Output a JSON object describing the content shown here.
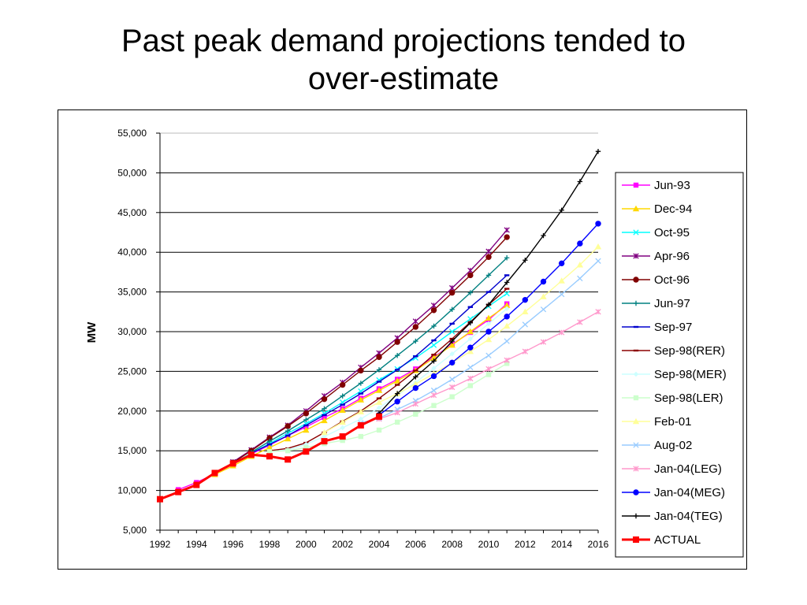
{
  "slide": {
    "title_line1": "Past peak demand projections tended to",
    "title_line2": "over-estimate"
  },
  "chart_data": {
    "type": "line",
    "title": "",
    "xlabel": "",
    "ylabel": "MW",
    "xlim": [
      1992,
      2016
    ],
    "ylim": [
      5000,
      55000
    ],
    "x_ticks": [
      1992,
      1994,
      1996,
      1998,
      2000,
      2002,
      2004,
      2006,
      2008,
      2010,
      2012,
      2014,
      2016
    ],
    "x_tick_labels": [
      "1992",
      "1994",
      "1996",
      "1998",
      "2000",
      "2002",
      "2004",
      "2006",
      "2008",
      "2010",
      "2012",
      "2014",
      "2016"
    ],
    "y_ticks": [
      5000,
      10000,
      15000,
      20000,
      25000,
      30000,
      35000,
      40000,
      45000,
      50000,
      55000
    ],
    "y_tick_labels": [
      "5,000",
      "10,000",
      "15,000",
      "20,000",
      "25,000",
      "30,000",
      "35,000",
      "40,000",
      "45,000",
      "50,000",
      "55,000"
    ],
    "grid": "horizontal",
    "legend_position": "right",
    "series": [
      {
        "name": "Jun-93",
        "color": "#ff00ff",
        "marker": "square",
        "x": [
          1993,
          1994,
          1995,
          1996,
          1997,
          1998,
          1999,
          2000,
          2001,
          2002,
          2003,
          2004,
          2005,
          2006,
          2007,
          2008,
          2009,
          2010,
          2011
        ],
        "y": [
          10100,
          11000,
          12100,
          13300,
          14600,
          15700,
          16900,
          18000,
          19200,
          20300,
          21600,
          22800,
          24000,
          25300,
          26800,
          28400,
          29900,
          31500,
          33500
        ]
      },
      {
        "name": "Dec-94",
        "color": "#ffd800",
        "marker": "triangle",
        "x": [
          1995,
          1996,
          1997,
          1998,
          1999,
          2000,
          2001,
          2002,
          2003,
          2004,
          2005,
          2006,
          2007,
          2008,
          2009,
          2010,
          2011
        ],
        "y": [
          12000,
          13100,
          14300,
          15400,
          16500,
          17600,
          18800,
          20100,
          21400,
          22600,
          23800,
          25100,
          26700,
          28300,
          30000,
          31700,
          33300
        ]
      },
      {
        "name": "Oct-95",
        "color": "#00ffff",
        "marker": "x",
        "x": [
          1996,
          1997,
          1998,
          1999,
          2000,
          2001,
          2002,
          2003,
          2004,
          2005,
          2006,
          2007,
          2008,
          2009,
          2010,
          2011
        ],
        "y": [
          13400,
          14700,
          15900,
          17200,
          18400,
          19700,
          21100,
          22500,
          23900,
          25300,
          26700,
          28300,
          30000,
          31600,
          33200,
          34800
        ]
      },
      {
        "name": "Apr-96",
        "color": "#800080",
        "marker": "star",
        "x": [
          1996,
          1997,
          1998,
          1999,
          2000,
          2001,
          2002,
          2003,
          2004,
          2005,
          2006,
          2007,
          2008,
          2009,
          2010,
          2011
        ],
        "y": [
          13600,
          15100,
          16700,
          18200,
          20000,
          21900,
          23600,
          25500,
          27300,
          29200,
          31300,
          33300,
          35500,
          37700,
          40100,
          42800
        ]
      },
      {
        "name": "Oct-96",
        "color": "#800000",
        "marker": "circle",
        "x": [
          1996,
          1997,
          1998,
          1999,
          2000,
          2001,
          2002,
          2003,
          2004,
          2005,
          2006,
          2007,
          2008,
          2009,
          2010,
          2011
        ],
        "y": [
          13500,
          15000,
          16600,
          18100,
          19700,
          21500,
          23300,
          25100,
          26800,
          28700,
          30600,
          32700,
          34900,
          37100,
          39400,
          41900
        ]
      },
      {
        "name": "Jun-97",
        "color": "#008080",
        "marker": "plus",
        "x": [
          1997,
          1998,
          1999,
          2000,
          2001,
          2002,
          2003,
          2004,
          2005,
          2006,
          2007,
          2008,
          2009,
          2010,
          2011
        ],
        "y": [
          14800,
          16200,
          17500,
          18900,
          20300,
          21900,
          23500,
          25200,
          27000,
          28800,
          30700,
          32800,
          34900,
          37100,
          39300
        ]
      },
      {
        "name": "Sep-97",
        "color": "#0000cd",
        "marker": "dash",
        "x": [
          1997,
          1998,
          1999,
          2000,
          2001,
          2002,
          2003,
          2004,
          2005,
          2006,
          2007,
          2008,
          2009,
          2010,
          2011
        ],
        "y": [
          14700,
          15800,
          16900,
          18200,
          19500,
          20800,
          22200,
          23700,
          25200,
          26900,
          28900,
          31000,
          33100,
          35000,
          37100
        ]
      },
      {
        "name": "Sep-98(RER)",
        "color": "#8b0000",
        "marker": "dash",
        "x": [
          1998,
          1999,
          2000,
          2001,
          2002,
          2003,
          2004,
          2005,
          2006,
          2007,
          2008,
          2009,
          2010,
          2011
        ],
        "y": [
          15000,
          15300,
          16000,
          17300,
          18700,
          20000,
          21600,
          23300,
          25100,
          27100,
          29100,
          31200,
          33400,
          35400
        ]
      },
      {
        "name": "Sep-98(MER)",
        "color": "#ccffff",
        "marker": "diamond",
        "x": [
          1998,
          1999,
          2000,
          2001,
          2002,
          2003,
          2004,
          2005,
          2006,
          2007,
          2008,
          2009,
          2010,
          2011
        ],
        "y": [
          14900,
          15100,
          15800,
          16800,
          17900,
          19000,
          20400,
          22000,
          23600,
          25400,
          27200,
          29100,
          31000,
          32900
        ]
      },
      {
        "name": "Sep-98(LER)",
        "color": "#ccffcc",
        "marker": "square",
        "x": [
          1998,
          1999,
          2000,
          2001,
          2002,
          2003,
          2004,
          2005,
          2006,
          2007,
          2008,
          2009,
          2010,
          2011
        ],
        "y": [
          14900,
          15000,
          15400,
          15900,
          16300,
          16800,
          17600,
          18600,
          19600,
          20700,
          21800,
          23200,
          24600,
          26000
        ]
      },
      {
        "name": "Feb-01",
        "color": "#ffff99",
        "marker": "triangle",
        "x": [
          2001,
          2002,
          2003,
          2004,
          2005,
          2006,
          2007,
          2008,
          2009,
          2010,
          2011,
          2012,
          2013,
          2014,
          2015,
          2016
        ],
        "y": [
          17300,
          18600,
          19900,
          21100,
          22200,
          23400,
          24700,
          26100,
          27500,
          29000,
          30700,
          32500,
          34400,
          36400,
          38400,
          40700
        ]
      },
      {
        "name": "Aug-02",
        "color": "#99ccff",
        "marker": "x",
        "x": [
          2003,
          2004,
          2005,
          2006,
          2007,
          2008,
          2009,
          2010,
          2011,
          2012,
          2013,
          2014,
          2015,
          2016
        ],
        "y": [
          18500,
          19100,
          20200,
          21300,
          22600,
          24000,
          25500,
          27000,
          28800,
          30900,
          32800,
          34700,
          36700,
          38900
        ]
      },
      {
        "name": "Jan-04(LEG)",
        "color": "#ff99cc",
        "marker": "star",
        "x": [
          2004,
          2005,
          2006,
          2007,
          2008,
          2009,
          2010,
          2011,
          2012,
          2013,
          2014,
          2015,
          2016
        ],
        "y": [
          19000,
          19800,
          20900,
          22000,
          23000,
          24100,
          25300,
          26400,
          27500,
          28700,
          29900,
          31200,
          32500
        ]
      },
      {
        "name": "Jan-04(MEG)",
        "color": "#0000ff",
        "marker": "circle",
        "x": [
          2004,
          2005,
          2006,
          2007,
          2008,
          2009,
          2010,
          2011,
          2012,
          2013,
          2014,
          2015,
          2016
        ],
        "y": [
          19500,
          21200,
          22900,
          24400,
          26100,
          28000,
          30000,
          31900,
          34000,
          36300,
          38600,
          41100,
          43600
        ]
      },
      {
        "name": "Jan-04(TEG)",
        "color": "#000000",
        "marker": "plus",
        "x": [
          2004,
          2005,
          2006,
          2007,
          2008,
          2009,
          2010,
          2011,
          2012,
          2013,
          2014,
          2015,
          2016
        ],
        "y": [
          19700,
          22200,
          24300,
          26300,
          28800,
          31100,
          33400,
          36200,
          39000,
          42100,
          45300,
          48900,
          52700
        ]
      },
      {
        "name": "ACTUAL",
        "color": "#ff0000",
        "marker": "square",
        "x": [
          1992,
          1993,
          1994,
          1995,
          1996,
          1997,
          1998,
          1999,
          2000,
          2001,
          2002,
          2003,
          2004
        ],
        "y": [
          8900,
          9800,
          10700,
          12200,
          13400,
          14500,
          14300,
          13900,
          14900,
          16200,
          16800,
          18200,
          19300
        ]
      }
    ]
  }
}
